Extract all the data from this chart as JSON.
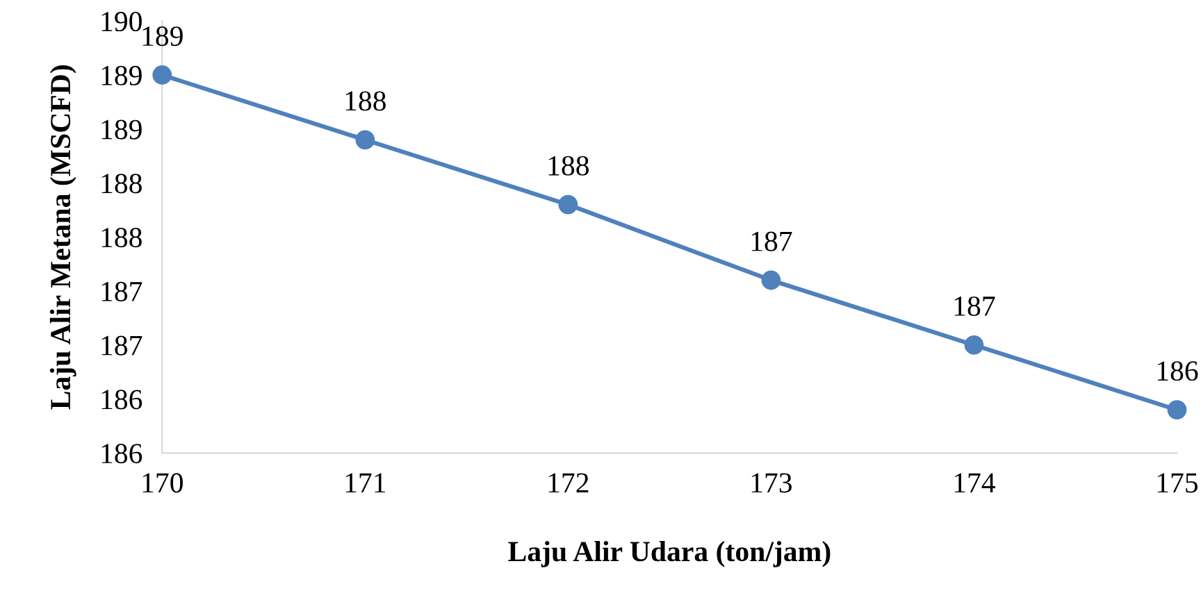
{
  "chart_data": {
    "type": "line",
    "xlabel": "Laju Alir Udara (ton/jam)",
    "ylabel": "Laju Alir Metana (MSCFD)",
    "x": [
      170,
      171,
      172,
      173,
      174,
      175
    ],
    "series": [
      {
        "color": "#4f81bd",
        "values": [
          189.0,
          188.4,
          187.8,
          187.1,
          186.5,
          185.9
        ],
        "value_labels": [
          "189",
          "188",
          "188",
          "187",
          "187",
          "186"
        ]
      }
    ],
    "xlim": [
      170,
      175
    ],
    "xticks": [
      170,
      171,
      172,
      173,
      174,
      175
    ],
    "ylim": [
      185.5,
      189.5
    ],
    "yticks": [
      {
        "value": 185.5,
        "label": "186"
      },
      {
        "value": 186,
        "label": "186"
      },
      {
        "value": 186.5,
        "label": "187"
      },
      {
        "value": 187,
        "label": "187"
      },
      {
        "value": 187.5,
        "label": "188"
      },
      {
        "value": 188,
        "label": "188"
      },
      {
        "value": 188.5,
        "label": "189"
      },
      {
        "value": 189,
        "label": "189"
      },
      {
        "value": 189.5,
        "label": "190"
      }
    ],
    "grid": false,
    "legend": false,
    "marker": "circle",
    "line_style": "solid"
  }
}
